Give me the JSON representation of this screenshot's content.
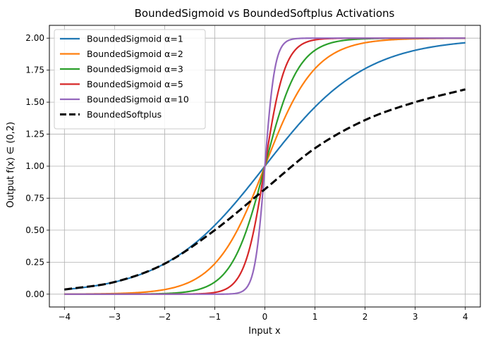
{
  "chart_data": {
    "type": "line",
    "title": "BoundedSigmoid vs BoundedSoftplus Activations",
    "xlabel": "Input x",
    "ylabel": "Output f(x) ∈ (0,2)",
    "xlim": [
      -4.3,
      4.3
    ],
    "ylim": [
      -0.1,
      2.1
    ],
    "xticks": [
      -4,
      -3,
      -2,
      -1,
      0,
      1,
      2,
      3,
      4
    ],
    "xtick_labels": [
      "−4",
      "−3",
      "−2",
      "−1",
      "0",
      "1",
      "2",
      "3",
      "4"
    ],
    "yticks": [
      0,
      0.25,
      0.5,
      0.75,
      1.0,
      1.25,
      1.5,
      1.75,
      2.0
    ],
    "ytick_labels": [
      "0.00",
      "0.25",
      "0.50",
      "0.75",
      "1.00",
      "1.25",
      "1.50",
      "1.75",
      "2.00"
    ],
    "grid": true,
    "legend_position": "top-left",
    "x_range": [
      -4,
      4
    ],
    "series": [
      {
        "name": "BoundedSigmoid α=1",
        "kind": "sigmoid",
        "alpha": 1,
        "color": "#1f77b4",
        "style": "solid"
      },
      {
        "name": "BoundedSigmoid α=2",
        "kind": "sigmoid",
        "alpha": 2,
        "color": "#ff7f0e",
        "style": "solid"
      },
      {
        "name": "BoundedSigmoid α=3",
        "kind": "sigmoid",
        "alpha": 3,
        "color": "#2ca02c",
        "style": "solid"
      },
      {
        "name": "BoundedSigmoid α=5",
        "kind": "sigmoid",
        "alpha": 5,
        "color": "#d62728",
        "style": "solid"
      },
      {
        "name": "BoundedSigmoid α=10",
        "kind": "sigmoid",
        "alpha": 10,
        "color": "#9467bd",
        "style": "solid"
      },
      {
        "name": "BoundedSoftplus",
        "kind": "softplus",
        "color": "#000000",
        "style": "dashed",
        "points": [
          [
            -4,
            0.036
          ],
          [
            -3,
            0.095
          ],
          [
            -2,
            0.238
          ],
          [
            -1,
            0.5
          ],
          [
            0,
            0.82
          ],
          [
            1,
            1.14
          ],
          [
            2,
            1.36
          ],
          [
            3,
            1.5
          ],
          [
            4,
            1.6
          ]
        ]
      }
    ]
  }
}
